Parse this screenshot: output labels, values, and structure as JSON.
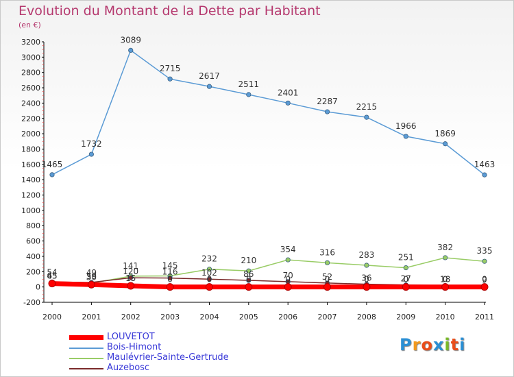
{
  "header": {
    "title": "Evolution du Montant de la Dette par Habitant",
    "subtitle": "(en €)"
  },
  "logo": {
    "text": "Proxiti",
    "letters": [
      "P",
      "r",
      "o",
      "x",
      "i",
      "t",
      "i"
    ],
    "colors": [
      "#2a8fd4",
      "#f39a1e",
      "#e94e1b",
      "#2a8fd4",
      "#7ab929",
      "#e94e1b",
      "#2a8fd4"
    ]
  },
  "chart_data": {
    "type": "line",
    "title": "Evolution du Montant de la Dette par Habitant",
    "subtitle": "(en €)",
    "xlabel": "",
    "ylabel": "",
    "x": [
      "2000",
      "2001",
      "2002",
      "2003",
      "2004",
      "2005",
      "2006",
      "2007",
      "2008",
      "2009",
      "2010",
      "2011"
    ],
    "ylim": [
      -200,
      3200
    ],
    "yticks": [
      -200,
      0,
      200,
      400,
      600,
      800,
      1000,
      1200,
      1400,
      1600,
      1800,
      2000,
      2200,
      2400,
      2600,
      2800,
      3000,
      3200
    ],
    "grid": false,
    "legend_position": "bottom-left",
    "series": [
      {
        "name": "LOUVETOT",
        "color": "#ff0000",
        "values": [
          45,
          30,
          15,
          0,
          0,
          0,
          0,
          0,
          0,
          0,
          0,
          0
        ],
        "labels": [
          "45",
          "30",
          "15",
          "0",
          "0",
          "0",
          "0",
          "0",
          "0",
          "0",
          "0",
          "0"
        ]
      },
      {
        "name": "Bois-Himont",
        "color": "#5b9bd5",
        "values": [
          1465,
          1732,
          3089,
          2715,
          2617,
          2511,
          2401,
          2287,
          2215,
          1966,
          1869,
          1463
        ],
        "labels": [
          "1465",
          "1732",
          "3089",
          "2715",
          "2617",
          "2511",
          "2401",
          "2287",
          "2215",
          "1966",
          "1869",
          "1463"
        ]
      },
      {
        "name": "Maulévrier-Sainte-Gertrude",
        "color": "#99cc66",
        "values": [
          54,
          49,
          141,
          145,
          232,
          210,
          354,
          316,
          283,
          251,
          382,
          335
        ],
        "labels": [
          "54",
          "49",
          "141",
          "145",
          "232",
          "210",
          "354",
          "316",
          "283",
          "251",
          "382",
          "335"
        ]
      },
      {
        "name": "Auzebosc",
        "color": "#7a2a2a",
        "values": [
          65,
          59,
          120,
          116,
          102,
          86,
          70,
          52,
          36,
          27,
          18,
          9
        ],
        "labels": [
          "65",
          "59",
          "120",
          "116",
          "102",
          "86",
          "70",
          "52",
          "36",
          "27",
          "18",
          "9"
        ]
      }
    ]
  }
}
